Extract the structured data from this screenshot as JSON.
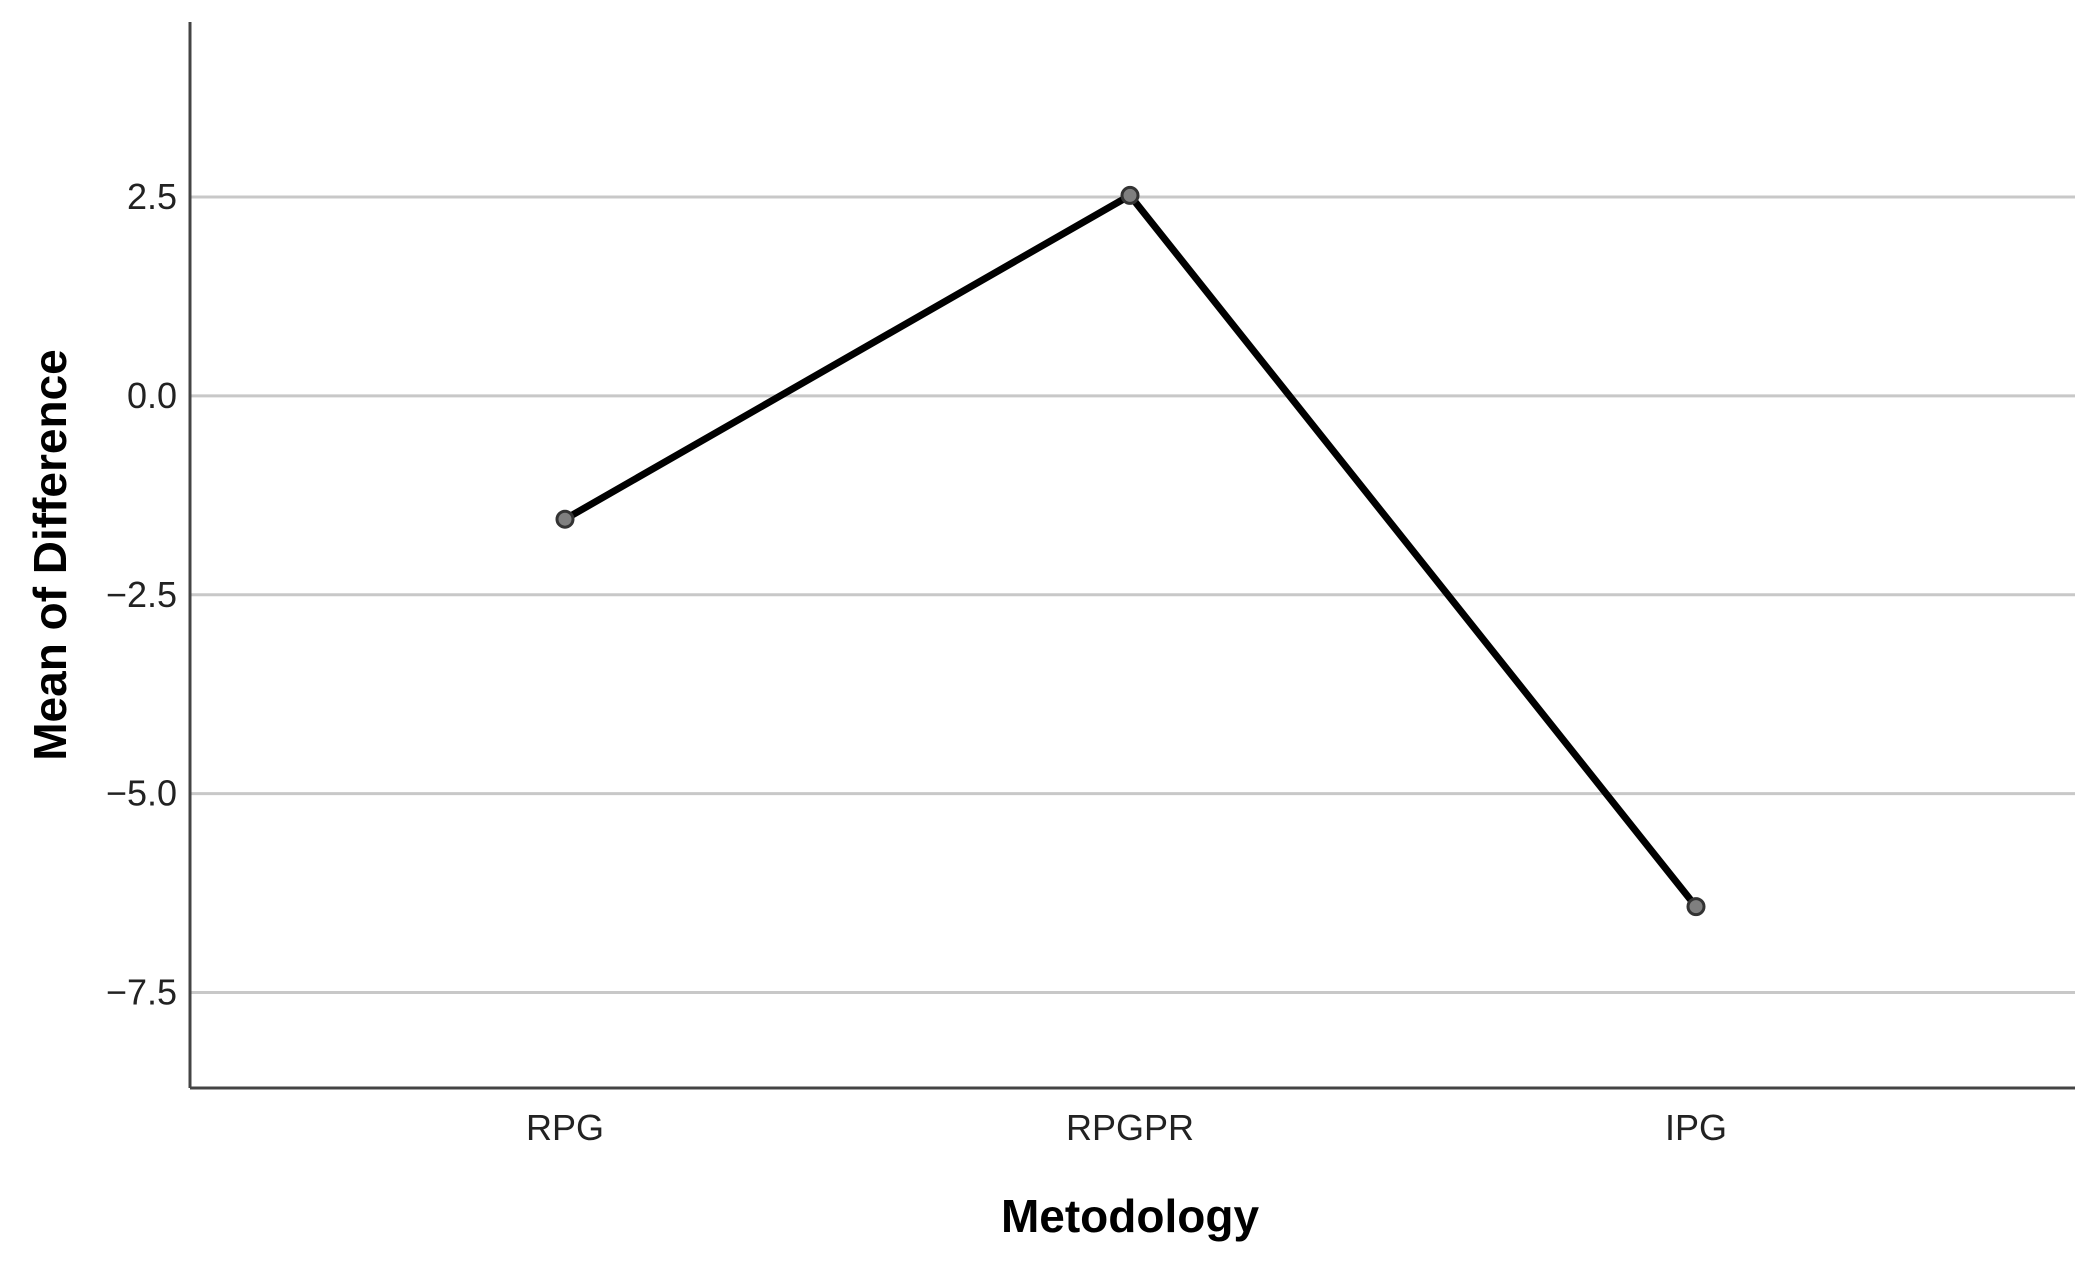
{
  "chart_data": {
    "type": "line",
    "title": "",
    "xlabel": "Metodology",
    "ylabel": "Mean of Difference",
    "categories": [
      "RPG",
      "RPGPR",
      "IPG"
    ],
    "series": [
      {
        "values": [
          -1.55,
          2.52,
          -6.42
        ]
      }
    ],
    "ylim": [
      -8.7,
      4.7
    ],
    "yticks": [
      2.5,
      0.0,
      -2.5,
      -5.0,
      -7.5
    ],
    "ytick_labels": [
      "2.5",
      "0.0",
      "−2.5",
      "−5.0",
      "−7.5"
    ],
    "grid": "horizontal",
    "legend": "none",
    "colors": {
      "line": "#000000",
      "marker_fill": "#7f7f7f",
      "grid": "#c8c8c8",
      "axis": "#444444"
    }
  }
}
